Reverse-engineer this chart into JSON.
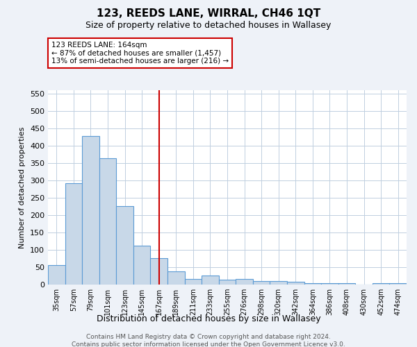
{
  "title": "123, REEDS LANE, WIRRAL, CH46 1QT",
  "subtitle": "Size of property relative to detached houses in Wallasey",
  "xlabel": "Distribution of detached houses by size in Wallasey",
  "ylabel": "Number of detached properties",
  "categories": [
    "35sqm",
    "57sqm",
    "79sqm",
    "101sqm",
    "123sqm",
    "145sqm",
    "167sqm",
    "189sqm",
    "211sqm",
    "233sqm",
    "255sqm",
    "276sqm",
    "298sqm",
    "320sqm",
    "342sqm",
    "364sqm",
    "386sqm",
    "408sqm",
    "430sqm",
    "452sqm",
    "474sqm"
  ],
  "values": [
    57,
    293,
    428,
    365,
    226,
    113,
    76,
    38,
    17,
    27,
    15,
    17,
    10,
    10,
    8,
    4,
    5,
    5,
    0,
    4,
    4
  ],
  "bar_color": "#c8d8e8",
  "bar_edge_color": "#5b9bd5",
  "annotation_text": "123 REEDS LANE: 164sqm\n← 87% of detached houses are smaller (1,457)\n13% of semi-detached houses are larger (216) →",
  "annotation_box_color": "#ffffff",
  "annotation_box_edge": "#cc0000",
  "vline_color": "#cc0000",
  "vline_index": 6,
  "footer_line1": "Contains HM Land Registry data © Crown copyright and database right 2024.",
  "footer_line2": "Contains public sector information licensed under the Open Government Licence v3.0.",
  "ylim": [
    0,
    560
  ],
  "yticks": [
    0,
    50,
    100,
    150,
    200,
    250,
    300,
    350,
    400,
    450,
    500,
    550
  ],
  "bg_color": "#eef2f8",
  "plot_bg_color": "#ffffff",
  "grid_color": "#c0cfe0"
}
